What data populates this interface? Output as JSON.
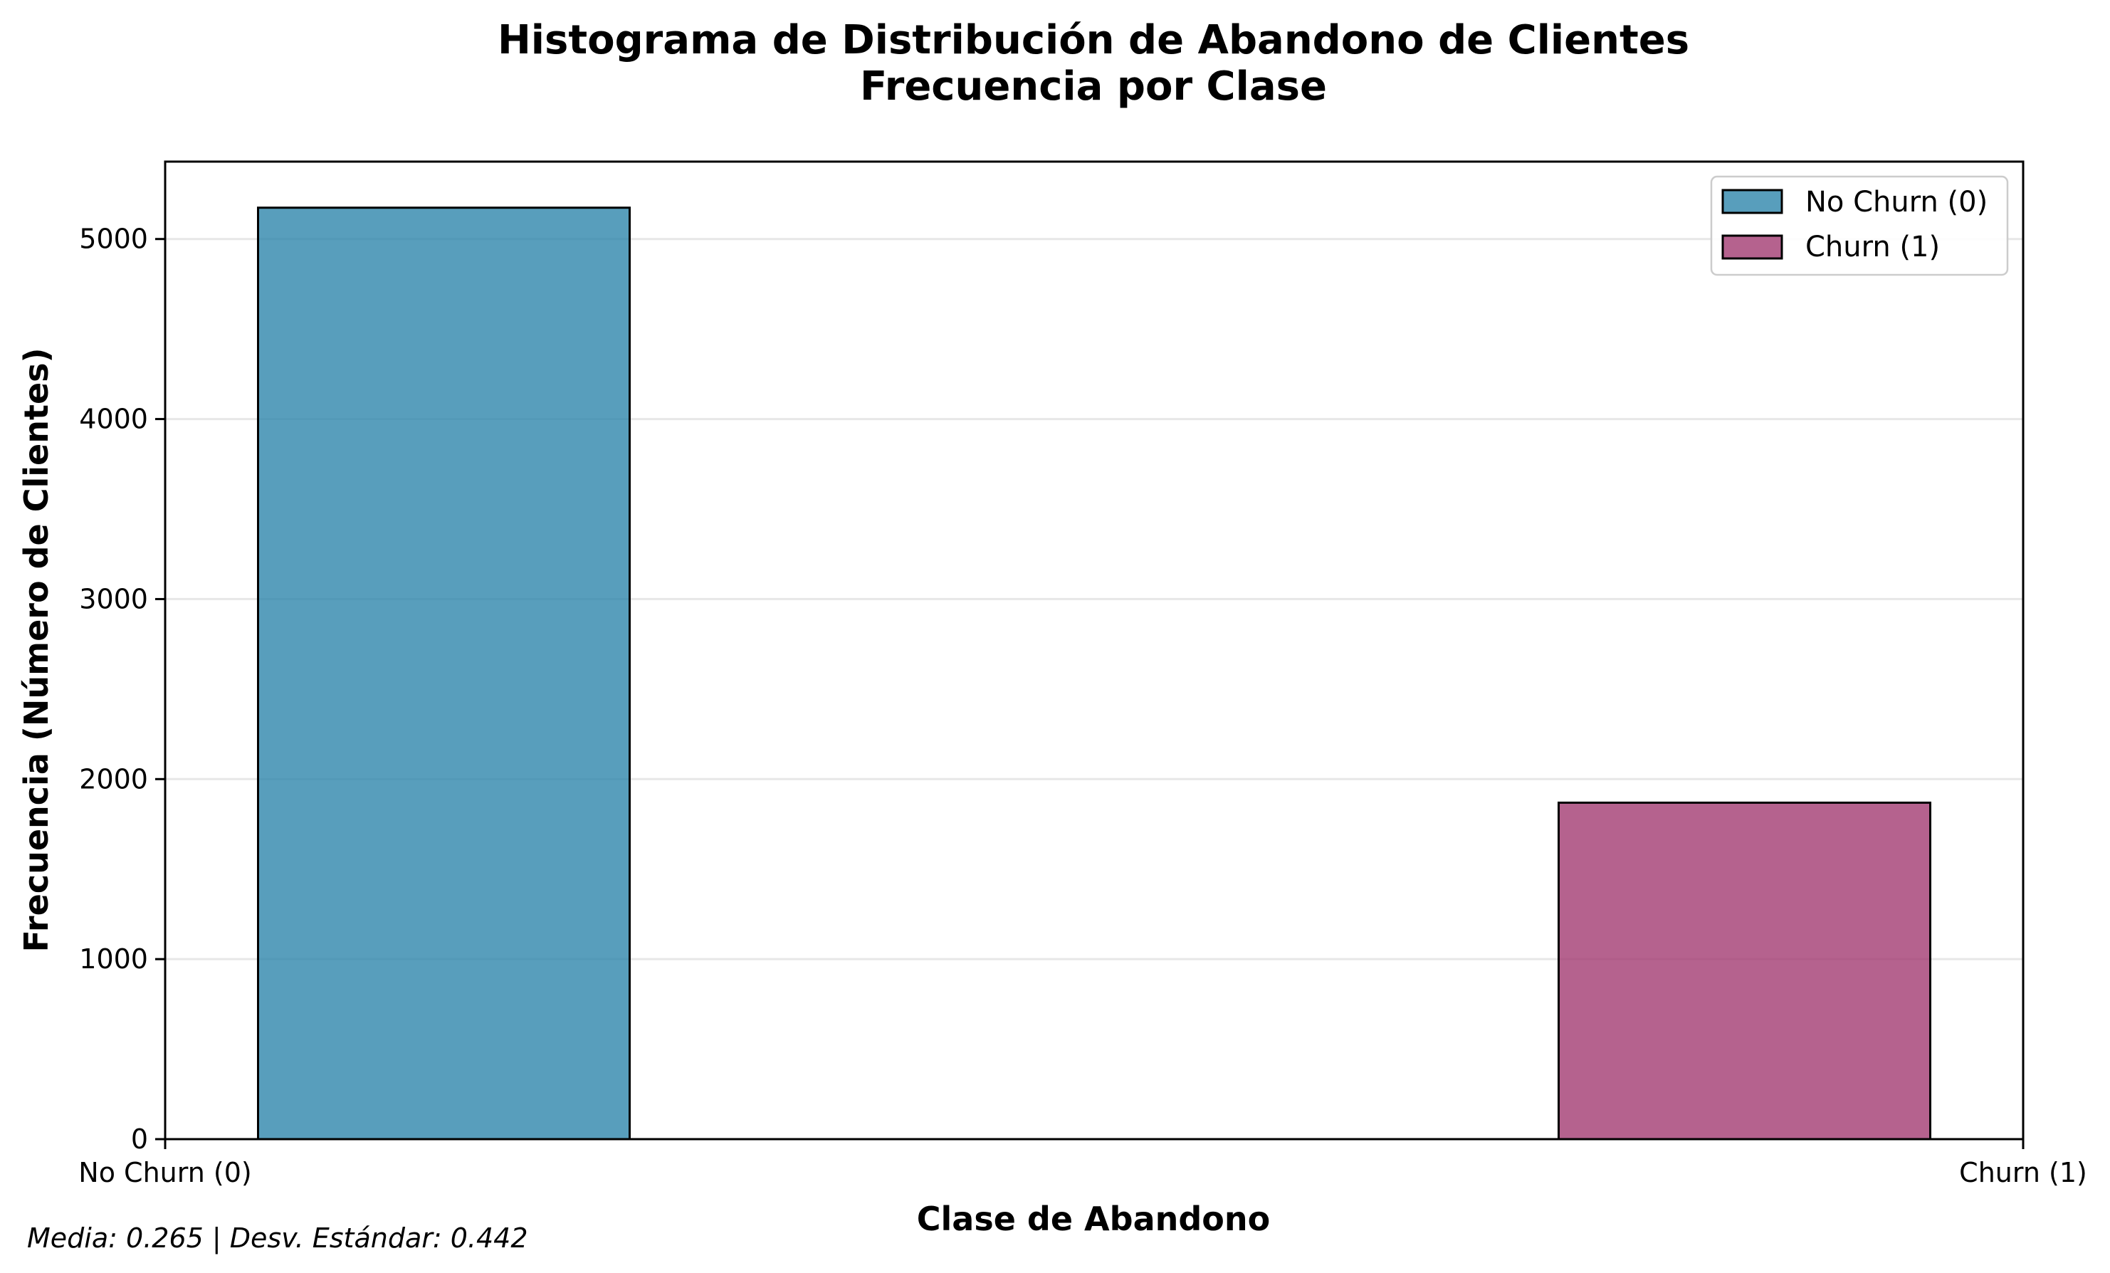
{
  "chart_data": {
    "type": "bar",
    "title": "Histograma de Distribución de Abandono de Clientes",
    "subtitle": "Frecuencia por Clase",
    "xlabel": "Clase de Abandono",
    "ylabel": "Frecuencia (Número de Clientes)",
    "xlim": [
      0,
      1
    ],
    "ylim": [
      0,
      5430
    ],
    "yticks": [
      0,
      1000,
      2000,
      3000,
      4000,
      5000
    ],
    "xticks": [
      {
        "value": 0,
        "label": "No Churn (0)"
      },
      {
        "value": 1,
        "label": "Churn (1)"
      }
    ],
    "bin_width": 0.2,
    "bars": [
      {
        "x_start": 0.05,
        "x_end": 0.25,
        "value": 5174,
        "color": "#2E86AB",
        "series": "No Churn (0)"
      },
      {
        "x_start": 0.25,
        "x_end": 0.45,
        "value": 0,
        "color": "#2E86AB",
        "series": "No Churn (0)"
      },
      {
        "x_start": 0.55,
        "x_end": 0.75,
        "value": 0,
        "color": "#A23B72",
        "series": "Churn (1)"
      },
      {
        "x_start": 0.75,
        "x_end": 0.95,
        "value": 1869,
        "color": "#A23B72",
        "series": "Churn (1)"
      }
    ],
    "series": [
      {
        "name": "No Churn (0)",
        "color": "#2E86AB",
        "values": [
          5174
        ]
      },
      {
        "name": "Churn (1)",
        "color": "#A23B72",
        "values": [
          1869
        ]
      }
    ],
    "legend": {
      "position": "top-right",
      "entries": [
        {
          "label": "No Churn (0)",
          "color": "#2E86AB"
        },
        {
          "label": "Churn (1)",
          "color": "#A23B72"
        }
      ]
    },
    "grid": {
      "y": true,
      "x": false
    },
    "annotation": "Media: 0.265 | Desv. Estándar: 0.442"
  }
}
